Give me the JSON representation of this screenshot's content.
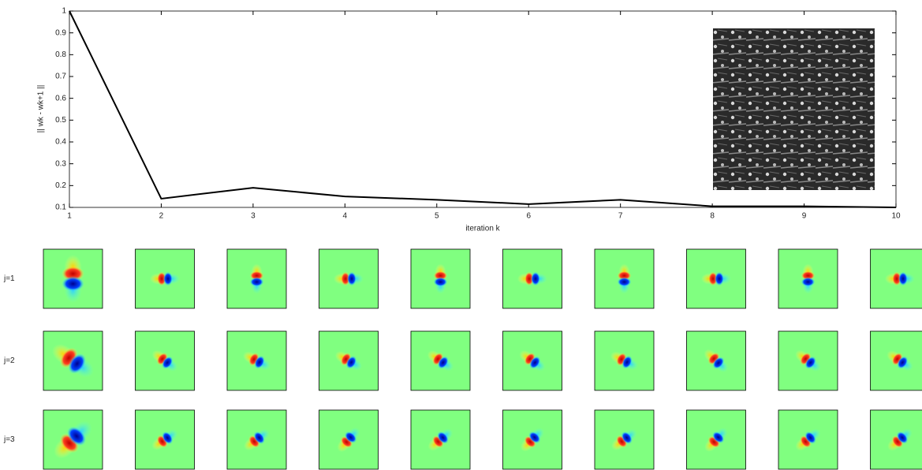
{
  "chart_data": {
    "type": "line",
    "ylabel": "|| wk - wk+1 ||",
    "xlabel": "iteration k",
    "x": [
      1,
      2,
      3,
      4,
      5,
      6,
      7,
      8,
      9,
      10
    ],
    "series": [
      {
        "color": "#000000",
        "values": [
          1,
          0.14,
          0.19,
          0.15,
          0.135,
          0.115,
          0.135,
          0.105,
          0.105,
          0.1
        ]
      }
    ],
    "xlim": [
      1,
      10
    ],
    "xticks": [
      1,
      2,
      3,
      4,
      5,
      6,
      7,
      8,
      9,
      10
    ],
    "ylim": [
      0.1,
      1
    ],
    "yticks": [
      0.1,
      0.2,
      0.3,
      0.4,
      0.5,
      0.6,
      0.7,
      0.8,
      0.9,
      1
    ],
    "grid": false
  },
  "rows": [
    "j=1",
    "j=2",
    "j=3"
  ]
}
